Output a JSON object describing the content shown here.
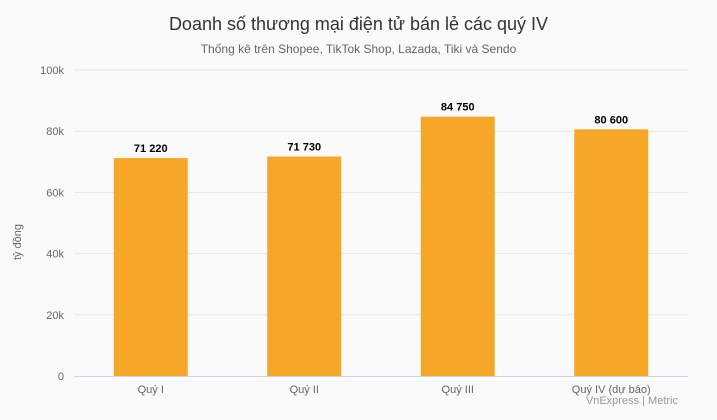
{
  "header": {
    "title": "Doanh số thương mại điện tử bán lẻ các quý IV",
    "subtitle": "Thống kê trên Shopee, TikTok Shop, Lazada, Tiki và Sendo"
  },
  "footer": {
    "credit": "VnExpress | Metric"
  },
  "colors": {
    "bar": "#f7a728",
    "grid": "#e6e6e6",
    "axis": "#ccd6eb",
    "background": "#fafafa"
  },
  "chart_data": {
    "type": "bar",
    "title": "Doanh số thương mại điện tử bán lẻ các quý IV",
    "subtitle": "Thống kê trên Shopee, TikTok Shop, Lazada, Tiki và Sendo",
    "categories": [
      "Quý I",
      "Quý II",
      "Quý III",
      "Quý IV (dự báo)"
    ],
    "values": [
      71220,
      71730,
      84750,
      80600
    ],
    "data_labels": [
      "71 220",
      "71 730",
      "84 750",
      "80 600"
    ],
    "xlabel": "",
    "ylabel": "tỷ đồng",
    "ylim": [
      0,
      100000
    ],
    "yticks": [
      0,
      20000,
      40000,
      60000,
      80000,
      100000
    ],
    "ytick_labels": [
      "0",
      "20k",
      "40k",
      "60k",
      "80k",
      "100k"
    ],
    "grid": true,
    "legend": "none"
  }
}
